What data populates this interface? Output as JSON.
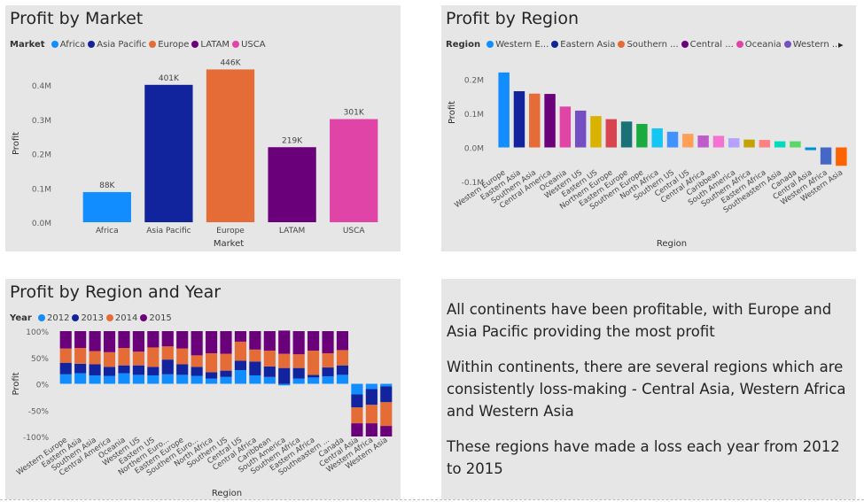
{
  "panels": {
    "market": {
      "title": "Profit by Market",
      "legend_label": "Market"
    },
    "region": {
      "title": "Profit by Region",
      "legend_label": "Region"
    },
    "region_year": {
      "title": "Profit by Region and Year",
      "legend_label": "Year"
    }
  },
  "notes": [
    "All continents have been profitable, with Europe and Asia Pacific providing the most profit",
    "Within continents, there are several regions which are consistently loss-making - Central Asia, Western Africa and Western Asia",
    "These regions have made a loss each year from 2012 to 2015"
  ],
  "icons": {
    "legend_next": "chevron-right-icon"
  },
  "chart_data": [
    {
      "id": "market",
      "type": "bar",
      "title": "Profit by Market",
      "xlabel": "Market",
      "ylabel": "Profit",
      "categories": [
        "Africa",
        "Asia Pacific",
        "Europe",
        "LATAM",
        "USCA"
      ],
      "values": [
        88,
        401,
        446,
        219,
        301
      ],
      "data_labels": [
        "88K",
        "401K",
        "446K",
        "219K",
        "301K"
      ],
      "colors": [
        "#118DFF",
        "#12239E",
        "#E66C37",
        "#6B007B",
        "#E044A7"
      ],
      "legend": [
        "Africa",
        "Asia Pacific",
        "Europe",
        "LATAM",
        "USCA"
      ],
      "legend_placement": "top-left",
      "ylim": [
        0,
        460
      ],
      "yticks": [
        0,
        100,
        200,
        300,
        400
      ],
      "ytick_labels": [
        "0.0M",
        "0.1M",
        "0.2M",
        "0.3M",
        "0.4M"
      ],
      "grid": false
    },
    {
      "id": "region",
      "type": "bar",
      "title": "Profit by Region",
      "xlabel": "Region",
      "ylabel": "Profit",
      "categories": [
        "Western Europe",
        "Eastern Asia",
        "Southern Asia",
        "Central America",
        "Oceania",
        "Western US",
        "Eastern US",
        "Northern Europe",
        "Eastern Europe",
        "Southern Europe",
        "North Africa",
        "Southern US",
        "Central US",
        "Central Africa",
        "Caribbean",
        "South America",
        "Southern Africa",
        "Eastern Africa",
        "Southeastern Asia",
        "Canada",
        "Central Asia",
        "Western Africa",
        "Western Asia"
      ],
      "values": [
        0.22,
        0.165,
        0.158,
        0.157,
        0.12,
        0.108,
        0.092,
        0.083,
        0.076,
        0.069,
        0.056,
        0.046,
        0.04,
        0.035,
        0.034,
        0.027,
        0.023,
        0.022,
        0.018,
        0.018,
        -0.008,
        -0.05,
        -0.054
      ],
      "colors": [
        "#118DFF",
        "#12239E",
        "#E66C37",
        "#6B007B",
        "#E044A7",
        "#744EC2",
        "#D9B300",
        "#D64550",
        "#197278",
        "#1AAB40",
        "#15C6F4",
        "#4092FF",
        "#FFA058",
        "#BE5DC9",
        "#F472D0",
        "#B5A1FF",
        "#C4A200",
        "#FF8080",
        "#00DBBC",
        "#5BD667",
        "#0091D5",
        "#4668C5",
        "#FF6300"
      ],
      "legend": [
        "Western E...",
        "Eastern Asia",
        "Southern ...",
        "Central ...",
        "Oceania",
        "Western ..."
      ],
      "legend_placement": "top-left",
      "ylim": [
        -0.1,
        0.23
      ],
      "yticks": [
        -0.1,
        0,
        0.1,
        0.2
      ],
      "ytick_labels": [
        "-0.1M",
        "0.0M",
        "0.1M",
        "0.2M"
      ],
      "grid": false
    },
    {
      "id": "region_year",
      "type": "bar",
      "stacked": "100%",
      "title": "Profit by Region and Year",
      "xlabel": "Region",
      "ylabel": "Profit",
      "categories": [
        "Western Europe",
        "Eastern Asia",
        "Southern Asia",
        "Central America",
        "Oceania",
        "Western US",
        "Eastern US",
        "Northern Euro...",
        "Eastern Europe",
        "Southern Euro...",
        "North Africa",
        "Southern US",
        "Central US",
        "Central Africa",
        "Caribbean",
        "South America",
        "Southern Africa",
        "Eastern Africa",
        "Southeastern ...",
        "Canada",
        "Central Asia",
        "Western Africa",
        "Western Asia"
      ],
      "series": [
        {
          "name": "2012",
          "color": "#118DFF",
          "values": [
            18,
            20,
            16,
            15,
            20,
            17,
            16,
            18,
            17,
            15,
            10,
            13,
            26,
            16,
            13,
            -3,
            10,
            12,
            14,
            17,
            -20,
            -10,
            -5
          ]
        },
        {
          "name": "2013",
          "color": "#12239E",
          "values": [
            22,
            18,
            21,
            17,
            15,
            18,
            16,
            28,
            20,
            17,
            12,
            12,
            18,
            26,
            20,
            30,
            20,
            5,
            17,
            18,
            -25,
            -30,
            -30
          ]
        },
        {
          "name": "2014",
          "color": "#E66C37",
          "values": [
            27,
            30,
            25,
            28,
            33,
            26,
            37,
            25,
            30,
            22,
            36,
            32,
            36,
            23,
            30,
            27,
            26,
            46,
            27,
            29,
            -30,
            -35,
            -45
          ]
        },
        {
          "name": "2015",
          "color": "#6B007B",
          "values": [
            33,
            32,
            38,
            40,
            32,
            39,
            31,
            29,
            33,
            46,
            42,
            43,
            20,
            35,
            37,
            44,
            44,
            37,
            42,
            36,
            -25,
            -25,
            -20
          ]
        }
      ],
      "legend": [
        "2012",
        "2013",
        "2014",
        "2015"
      ],
      "legend_placement": "top-left",
      "ylim": [
        -100,
        100
      ],
      "yticks": [
        -100,
        -50,
        0,
        50,
        100
      ],
      "ytick_labels": [
        "-100%",
        "-50%",
        "0%",
        "50%",
        "100%"
      ],
      "grid": false
    }
  ]
}
